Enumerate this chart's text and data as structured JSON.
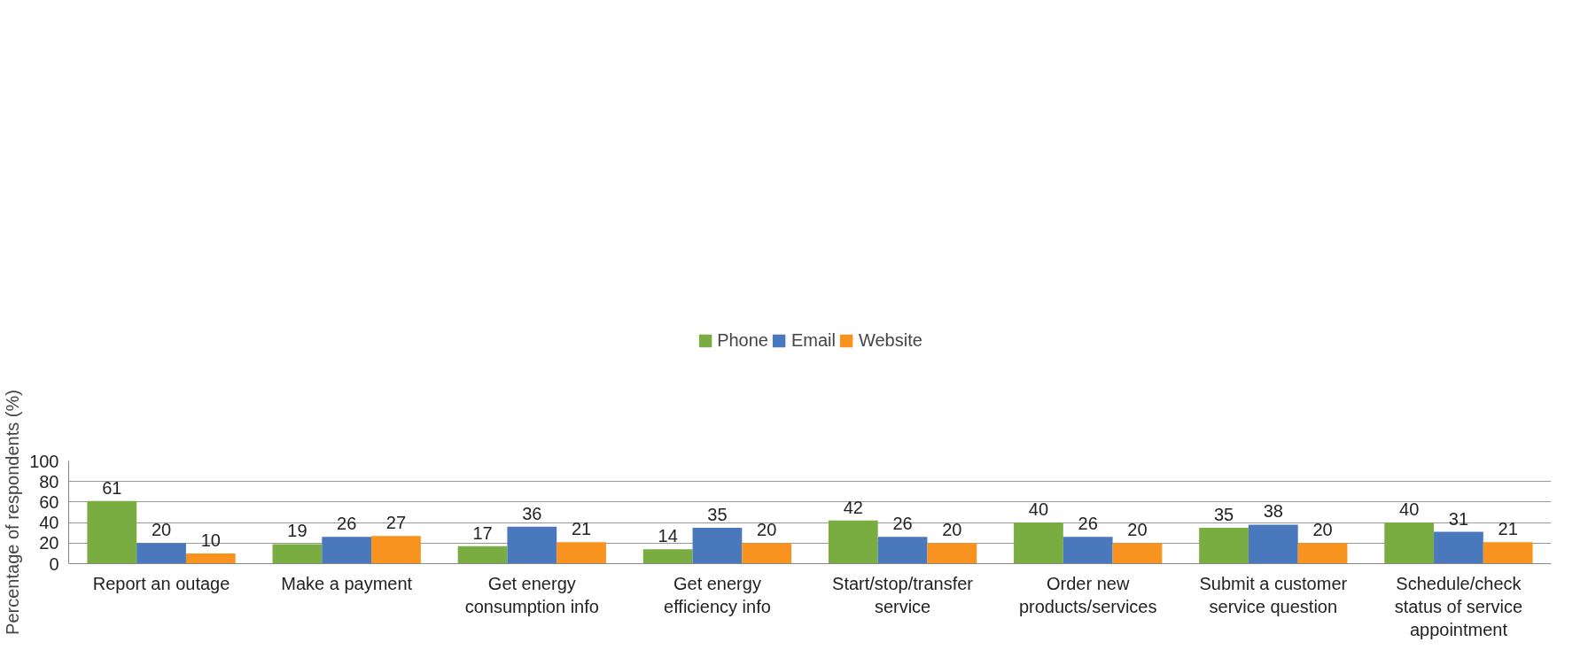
{
  "chart_data": {
    "type": "bar",
    "ylabel": "Percentage of respondents (%)",
    "categories": [
      "Report an outage",
      "Make a payment",
      "Get energy consumption info",
      "Get energy efficiency info",
      "Start/stop/transfer service",
      "Order new products/services",
      "Submit a customer service question",
      "Schedule/check status of service appointment"
    ],
    "series": [
      {
        "name": "Phone",
        "color": "#7aad41",
        "values": [
          61,
          19,
          17,
          14,
          42,
          40,
          35,
          40
        ]
      },
      {
        "name": "Email",
        "color": "#4a78bd",
        "values": [
          20,
          26,
          36,
          35,
          26,
          26,
          38,
          31
        ]
      },
      {
        "name": "Website",
        "color": "#f7931e",
        "values": [
          10,
          27,
          21,
          20,
          20,
          20,
          20,
          21
        ]
      }
    ],
    "ylim": [
      0,
      100
    ],
    "yticks": [
      0,
      20,
      40,
      60,
      80,
      100
    ],
    "grid": "y",
    "legend": "top",
    "data_labels": true
  }
}
